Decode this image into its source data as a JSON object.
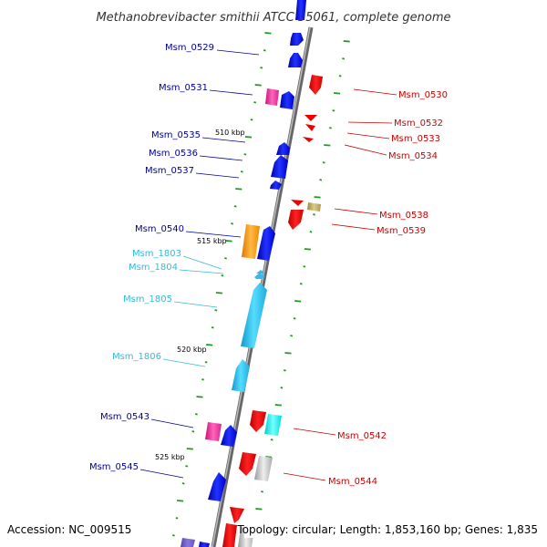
{
  "title": "Methanobrevibacter smithii ATCC 35061, complete genome",
  "footer": {
    "accession": "Accession: NC_009515",
    "stats": "Topology: circular; Length: 1,853,160 bp; Genes: 1,835"
  },
  "colors": {
    "backbone": "#888888",
    "forward": "#0000ee",
    "reverse": "#ee0000",
    "rna_or_pseudo": "#33ccee",
    "misc_pink": "#ee3399",
    "misc_orange": "#ff9900",
    "misc_cyan": "#00eeee",
    "misc_gray": "#bbbbbb",
    "misc_olive": "#bbaa66",
    "tick": "#229922"
  },
  "scale_labels": [
    "510 kbp",
    "515 kbp",
    "520 kbp",
    "525 kbp"
  ],
  "gene_labels_left": [
    {
      "text": "Msm_0529",
      "color": "#000099"
    },
    {
      "text": "Msm_0531",
      "color": "#000099"
    },
    {
      "text": "Msm_0535",
      "color": "#000099"
    },
    {
      "text": "Msm_0536",
      "color": "#000099"
    },
    {
      "text": "Msm_0537",
      "color": "#000099"
    },
    {
      "text": "Msm_0540",
      "color": "#000099"
    },
    {
      "text": "Msm_1803",
      "color": "#33bbdd"
    },
    {
      "text": "Msm_1804",
      "color": "#33bbdd"
    },
    {
      "text": "Msm_1805",
      "color": "#33bbdd"
    },
    {
      "text": "Msm_1806",
      "color": "#33bbdd"
    },
    {
      "text": "Msm_0543",
      "color": "#000099"
    },
    {
      "text": "Msm_0545",
      "color": "#000099"
    }
  ],
  "gene_labels_right": [
    {
      "text": "Msm_0530",
      "color": "#cc0000"
    },
    {
      "text": "Msm_0532",
      "color": "#cc0000"
    },
    {
      "text": "Msm_0533",
      "color": "#cc0000"
    },
    {
      "text": "Msm_0534",
      "color": "#cc0000"
    },
    {
      "text": "Msm_0538",
      "color": "#cc0000"
    },
    {
      "text": "Msm_0539",
      "color": "#cc0000"
    },
    {
      "text": "Msm_0542",
      "color": "#cc0000"
    },
    {
      "text": "Msm_0544",
      "color": "#cc0000"
    }
  ]
}
